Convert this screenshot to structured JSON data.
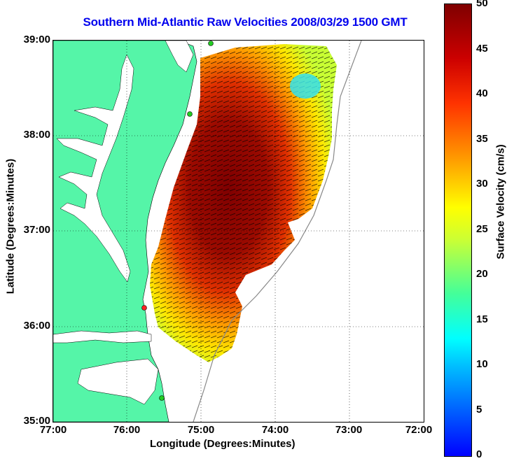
{
  "title": "Southern Mid-Atlantic Raw Velocities 2008/03/29 1500 GMT",
  "xaxis": {
    "label": "Longitude (Degrees:Minutes)",
    "ticks": [
      "77:00",
      "76:00",
      "75:00",
      "74:00",
      "73:00",
      "72:00"
    ]
  },
  "yaxis": {
    "label": "Latitude (Degrees:Minutes)",
    "ticks": [
      "39:00",
      "38:00",
      "37:00",
      "36:00",
      "35:00"
    ]
  },
  "colorbar": {
    "label": "Surface Velocity (cm/s)",
    "ticks": [
      "50",
      "45",
      "40",
      "35",
      "30",
      "25",
      "20",
      "15",
      "10",
      "5",
      "0"
    ],
    "range": [
      0,
      50
    ]
  },
  "colors": {
    "land": "#55f5a8",
    "water": "#ffffff",
    "title": "#0000ee",
    "station": "#22cc22"
  },
  "map_extent": {
    "lon": [
      -77,
      -72
    ],
    "lat": [
      35,
      39
    ]
  }
}
